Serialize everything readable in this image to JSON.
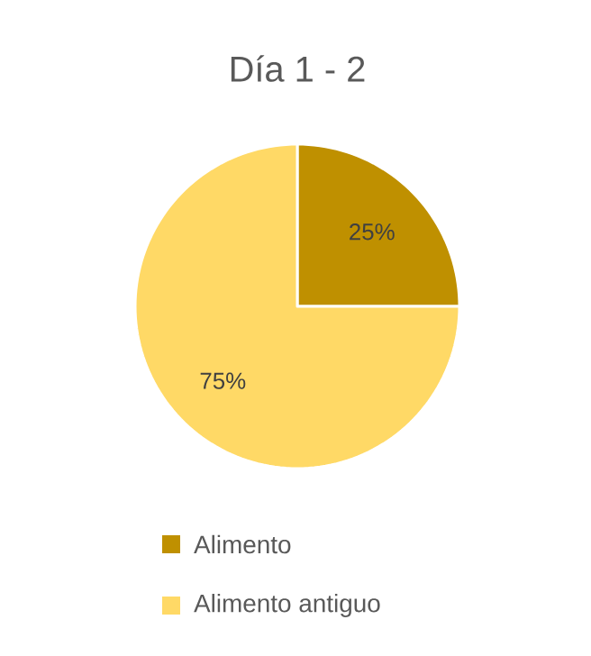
{
  "chart_data": {
    "type": "pie",
    "title": "Día 1 - 2",
    "categories": [
      "Alimento",
      "Alimento antiguo"
    ],
    "values": [
      25,
      75
    ],
    "value_labels": [
      "25%",
      "75%"
    ],
    "colors": [
      "#bf9000",
      "#ffd966"
    ],
    "legend": "bottom"
  }
}
